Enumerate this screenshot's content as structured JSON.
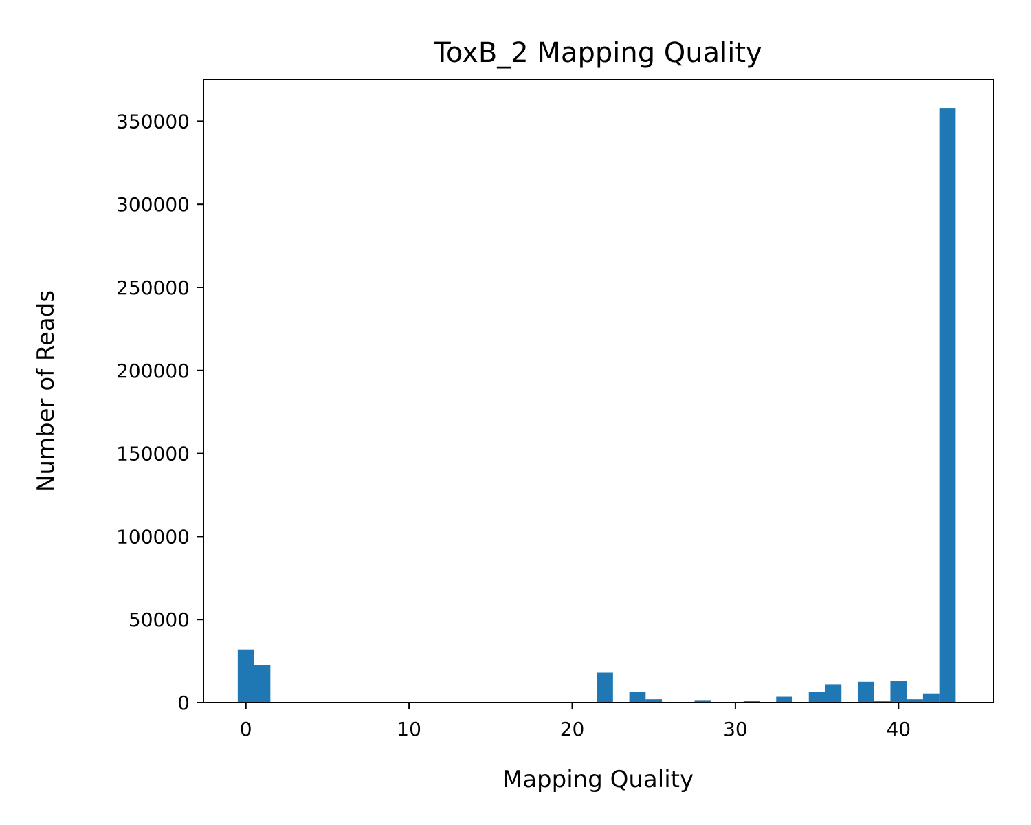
{
  "chart_data": {
    "type": "bar",
    "title": "ToxB_2 Mapping Quality",
    "xlabel": "Mapping Quality",
    "ylabel": "Number of Reads",
    "xlim": [
      -2.6,
      45.8
    ],
    "ylim": [
      0,
      375000
    ],
    "xticks": [
      0,
      10,
      20,
      30,
      40
    ],
    "yticks": [
      0,
      50000,
      100000,
      150000,
      200000,
      250000,
      300000,
      350000
    ],
    "bin_width": 1.0,
    "bar_color": "#1f77b4",
    "grid": false,
    "legend": false,
    "bars": [
      {
        "x0": -0.5,
        "x1": 0.5,
        "value": 32000
      },
      {
        "x0": 0.5,
        "x1": 1.5,
        "value": 22500
      },
      {
        "x0": 21.5,
        "x1": 22.5,
        "value": 18000
      },
      {
        "x0": 23.5,
        "x1": 24.5,
        "value": 6500
      },
      {
        "x0": 24.5,
        "x1": 25.5,
        "value": 2000
      },
      {
        "x0": 27.5,
        "x1": 28.5,
        "value": 1500
      },
      {
        "x0": 30.5,
        "x1": 31.5,
        "value": 1000
      },
      {
        "x0": 32.5,
        "x1": 33.5,
        "value": 3500
      },
      {
        "x0": 34.5,
        "x1": 35.5,
        "value": 6500
      },
      {
        "x0": 35.5,
        "x1": 36.5,
        "value": 11000
      },
      {
        "x0": 37.5,
        "x1": 38.5,
        "value": 12500
      },
      {
        "x0": 38.5,
        "x1": 39.5,
        "value": 800
      },
      {
        "x0": 39.5,
        "x1": 40.5,
        "value": 13000
      },
      {
        "x0": 40.5,
        "x1": 41.5,
        "value": 2000
      },
      {
        "x0": 41.5,
        "x1": 42.5,
        "value": 5500
      },
      {
        "x0": 42.5,
        "x1": 43.5,
        "value": 358000
      }
    ]
  }
}
